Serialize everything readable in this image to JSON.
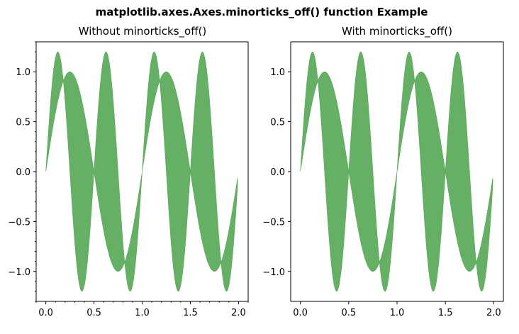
{
  "figure": {
    "suptitle": "matplotlib.axes.Axes.minorticks_off() function Example"
  },
  "chart_data": [
    {
      "type": "area",
      "title": "Without minorticks_off()",
      "xlabel": "",
      "ylabel": "",
      "xlim": [
        -0.1,
        2.1
      ],
      "ylim": [
        -1.3,
        1.3
      ],
      "xticks": [
        0.0,
        0.5,
        1.0,
        1.5,
        2.0
      ],
      "xtick_labels": [
        "0.0",
        "0.5",
        "1.0",
        "1.5",
        "2.0"
      ],
      "yticks": [
        -1.0,
        -0.5,
        0.0,
        0.5,
        1.0
      ],
      "ytick_labels": [
        "−1.0",
        "−0.5",
        "0.0",
        "0.5",
        "1.0"
      ],
      "minor_ticks": true,
      "grid": false,
      "fill_color": "#4aa24a",
      "fill_alpha": 0.85,
      "x_range": [
        0.0,
        2.0
      ],
      "x_step": 0.01,
      "lower_curve": {
        "formula": "sin(2*pi*x)",
        "sample_x": [
          0.0,
          0.25,
          0.5,
          0.75,
          1.0,
          1.25,
          1.5,
          1.75,
          1.99
        ],
        "sample_y": [
          0.0,
          1.0,
          0.0,
          -1.0,
          0.0,
          1.0,
          0.0,
          -1.0,
          -0.06
        ]
      },
      "upper_curve": {
        "formula": "1.2*sin(4*pi*x)",
        "sample_x": [
          0.0,
          0.125,
          0.375,
          0.625,
          0.875,
          1.125,
          1.375,
          1.625,
          1.875
        ],
        "sample_y": [
          0.0,
          1.2,
          -1.2,
          1.2,
          -1.2,
          1.2,
          -1.2,
          1.2,
          -1.2
        ]
      }
    },
    {
      "type": "area",
      "title": "With minorticks_off()",
      "xlabel": "",
      "ylabel": "",
      "xlim": [
        -0.1,
        2.1
      ],
      "ylim": [
        -1.3,
        1.3
      ],
      "xticks": [
        0.0,
        0.5,
        1.0,
        1.5,
        2.0
      ],
      "xtick_labels": [
        "0.0",
        "0.5",
        "1.0",
        "1.5",
        "2.0"
      ],
      "yticks": [
        -1.0,
        -0.5,
        0.0,
        0.5,
        1.0
      ],
      "ytick_labels": [
        "−1.0",
        "−0.5",
        "0.0",
        "0.5",
        "1.0"
      ],
      "minor_ticks": false,
      "grid": false,
      "fill_color": "#4aa24a",
      "fill_alpha": 0.85,
      "x_range": [
        0.0,
        2.0
      ],
      "x_step": 0.01,
      "lower_curve": {
        "formula": "sin(2*pi*x)",
        "sample_x": [
          0.0,
          0.25,
          0.5,
          0.75,
          1.0,
          1.25,
          1.5,
          1.75,
          1.99
        ],
        "sample_y": [
          0.0,
          1.0,
          0.0,
          -1.0,
          0.0,
          1.0,
          0.0,
          -1.0,
          -0.06
        ]
      },
      "upper_curve": {
        "formula": "1.2*sin(4*pi*x)",
        "sample_x": [
          0.0,
          0.125,
          0.375,
          0.625,
          0.875,
          1.125,
          1.375,
          1.625,
          1.875
        ],
        "sample_y": [
          0.0,
          1.2,
          -1.2,
          1.2,
          -1.2,
          1.2,
          -1.2,
          1.2,
          -1.2
        ]
      }
    }
  ]
}
